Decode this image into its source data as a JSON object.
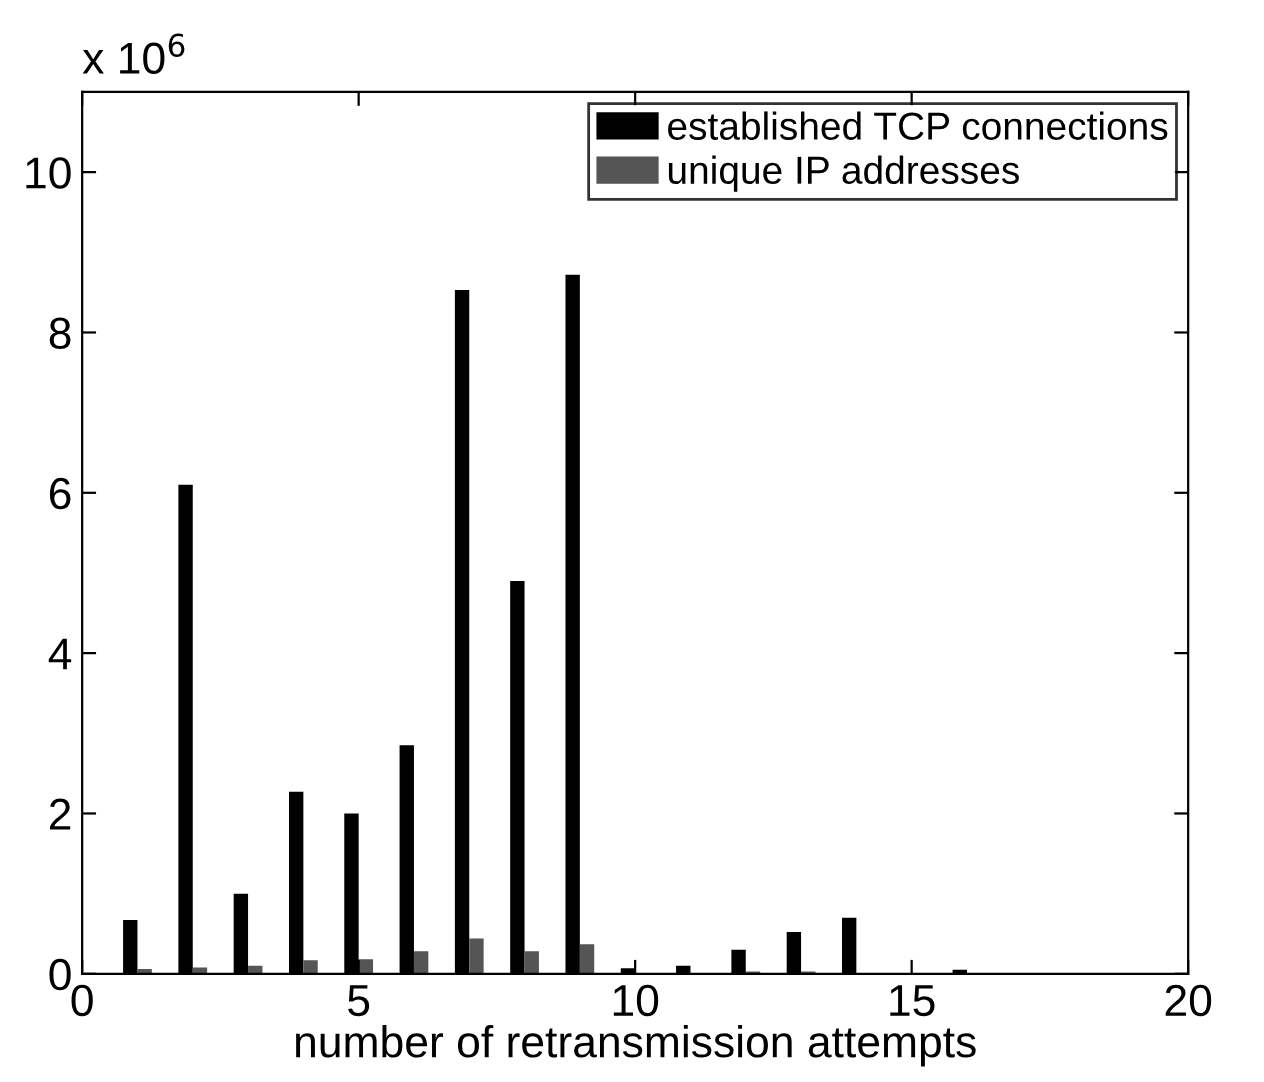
{
  "chart_data": {
    "type": "bar",
    "xlabel": "number of retransmission attempts",
    "annotations": [
      "x 10$^{6}$"
    ],
    "x": [
      1,
      2,
      3,
      4,
      5,
      6,
      7,
      8,
      9,
      10,
      11,
      12,
      13,
      14,
      15,
      16,
      17,
      18,
      19
    ],
    "series": [
      {
        "name": "established TCP connections",
        "color": "#000000",
        "values": [
          0.67,
          6.1,
          1.0,
          2.27,
          2.0,
          2.85,
          8.53,
          4.9,
          8.72,
          0.07,
          0.1,
          0.3,
          0.52,
          0.7,
          0.01,
          0.05,
          0.01,
          0.01,
          0.01
        ]
      },
      {
        "name": "unique IP addresses",
        "color": "#555555",
        "values": [
          0.06,
          0.08,
          0.1,
          0.17,
          0.18,
          0.28,
          0.44,
          0.28,
          0.37,
          0.01,
          0.01,
          0.03,
          0.03,
          0.01,
          0.01,
          0.01,
          0.01,
          0.01,
          0.01
        ]
      }
    ],
    "xlim": [
      0,
      20
    ],
    "xticks": [
      0,
      5,
      10,
      15,
      20
    ],
    "ylim": [
      0,
      11
    ],
    "yticks": [
      0,
      2,
      4,
      6,
      8,
      10
    ],
    "grid": false,
    "legend": "top right"
  }
}
